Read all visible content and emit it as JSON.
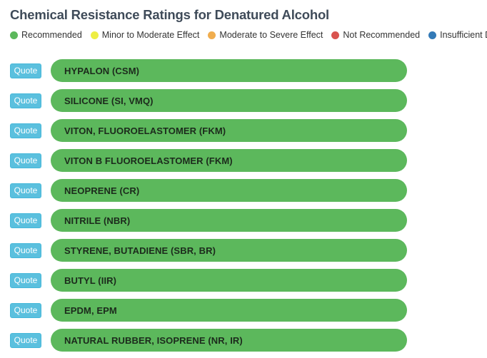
{
  "title": "Chemical Resistance Ratings for Denatured Alcohol",
  "legend": [
    {
      "label": "Recommended",
      "color": "#5cb85c",
      "icon": "recommended-dot-icon"
    },
    {
      "label": "Minor to Moderate Effect",
      "color": "#eeee44",
      "icon": "minor-effect-dot-icon"
    },
    {
      "label": "Moderate to Severe Effect",
      "color": "#f0ad4e",
      "icon": "severe-effect-dot-icon"
    },
    {
      "label": "Not Recommended",
      "color": "#d9534f",
      "icon": "not-recommended-dot-icon"
    },
    {
      "label": "Insufficient Data",
      "color": "#337ab7",
      "icon": "insufficient-data-dot-icon"
    }
  ],
  "quote_label": "Quote",
  "rows": [
    {
      "material": "HYPALON (CSM)",
      "rating": "Recommended",
      "color": "#5cb85c"
    },
    {
      "material": "SILICONE (SI, VMQ)",
      "rating": "Recommended",
      "color": "#5cb85c"
    },
    {
      "material": "VITON, FLUOROELASTOMER (FKM)",
      "rating": "Recommended",
      "color": "#5cb85c"
    },
    {
      "material": "VITON B FLUOROELASTOMER (FKM)",
      "rating": "Recommended",
      "color": "#5cb85c"
    },
    {
      "material": "NEOPRENE (CR)",
      "rating": "Recommended",
      "color": "#5cb85c"
    },
    {
      "material": "NITRILE (NBR)",
      "rating": "Recommended",
      "color": "#5cb85c"
    },
    {
      "material": "STYRENE, BUTADIENE (SBR, BR)",
      "rating": "Recommended",
      "color": "#5cb85c"
    },
    {
      "material": "BUTYL (IIR)",
      "rating": "Recommended",
      "color": "#5cb85c"
    },
    {
      "material": "EPDM, EPM",
      "rating": "Recommended",
      "color": "#5cb85c"
    },
    {
      "material": "NATURAL RUBBER, ISOPRENE (NR, IR)",
      "rating": "Recommended",
      "color": "#5cb85c"
    }
  ]
}
